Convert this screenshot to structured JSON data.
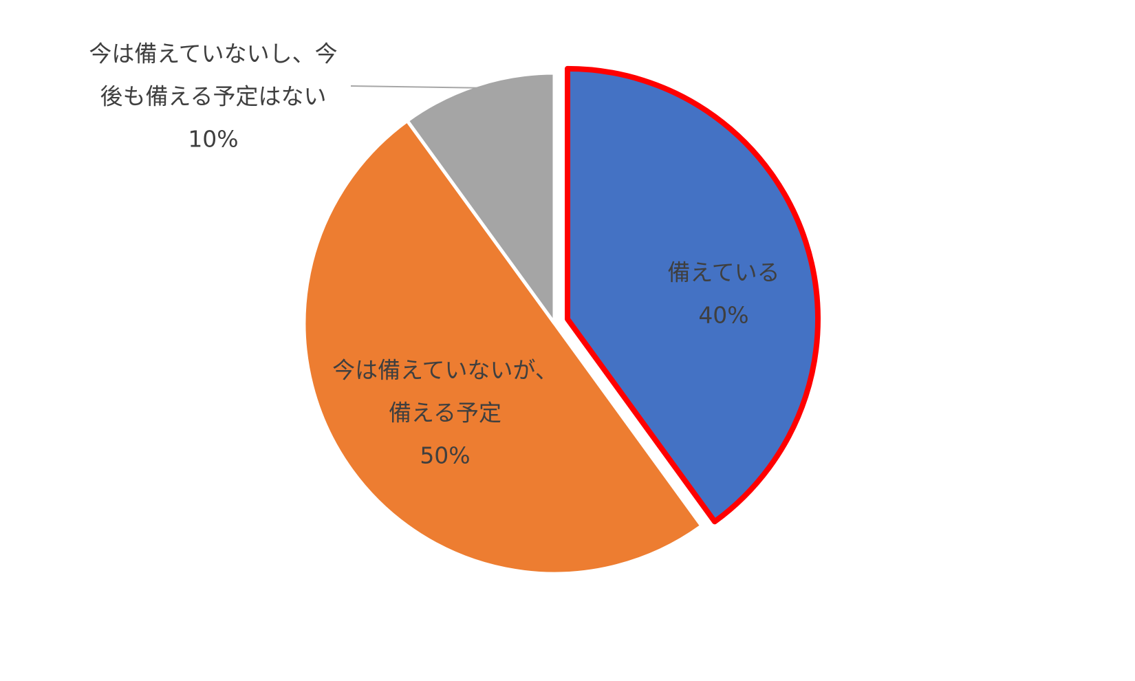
{
  "chart_data": {
    "type": "pie",
    "title": "",
    "start_angle_deg": 0,
    "direction": "clockwise",
    "highlighted_slice": "備えている",
    "highlight_color": "#FF0000",
    "slices": [
      {
        "label": "備えている",
        "label_lines": [
          "備えている"
        ],
        "value": 40,
        "value_label": "40%",
        "color": "#4472C4",
        "label_position": "inside"
      },
      {
        "label": "今は備えていないが、備える予定",
        "label_lines": [
          "今は備えていないが、",
          "備える予定"
        ],
        "value": 50,
        "value_label": "50%",
        "color": "#ED7D31",
        "label_position": "inside"
      },
      {
        "label": "今は備えていないし、今後も備える予定はない",
        "label_lines": [
          "今は備えていないし、今",
          "後も備える予定はない"
        ],
        "value": 10,
        "value_label": "10%",
        "color": "#A5A5A5",
        "label_position": "outside-top-left",
        "leader_line": true
      }
    ]
  }
}
